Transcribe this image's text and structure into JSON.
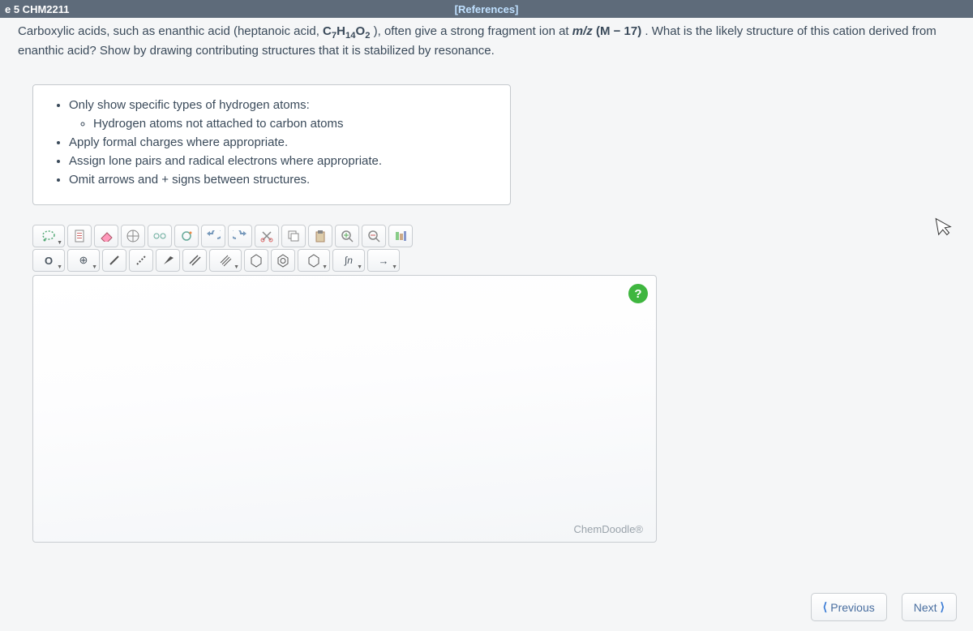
{
  "header": {
    "course": "e 5 CHM2211",
    "references": "[References]"
  },
  "question": {
    "text_before": "Carboxylic acids, such as enanthic acid (heptanoic acid, ",
    "formula_html": "C<sub>7</sub>H<sub>14</sub>O<sub>2</sub>",
    "text_mid": "), often give a strong fragment ion at ",
    "mz_html": "<i>m/z</i> (M − 17)",
    "text_after": ". What is the likely structure of this cation derived from enanthic acid? Show by drawing contributing structures that it is stabilized by resonance."
  },
  "instructions": {
    "main1": "Only show specific types of hydrogen atoms:",
    "sub1": "Hydrogen atoms not attached to carbon atoms",
    "main2": "Apply formal charges where appropriate.",
    "main3": "Assign lone pairs and radical electrons where appropriate.",
    "main4": "Omit arrows and + signs between structures."
  },
  "toolbar1": {
    "lasso": "lasso",
    "doc": "document",
    "eraser": "eraser",
    "center": "center",
    "bond_rot": "rotate",
    "ring": "ring",
    "undo": "undo",
    "redo": "redo",
    "cut": "cut",
    "copy": "copy",
    "paste": "paste",
    "zoomin": "+",
    "zoomout": "−",
    "settings": "settings"
  },
  "toolbar2": {
    "element": "O",
    "charge": "⊕",
    "single": "/",
    "dashed": "⋯",
    "bold": "▮",
    "double": "//",
    "triple": "///",
    "hex1": "⬡",
    "hex2": "⬡",
    "hex3": "⬡",
    "chain": "∫n",
    "arrow": "→"
  },
  "canvas": {
    "help": "?",
    "brand": "ChemDoodle®"
  },
  "nav": {
    "prev": "Previous",
    "next": "Next"
  }
}
